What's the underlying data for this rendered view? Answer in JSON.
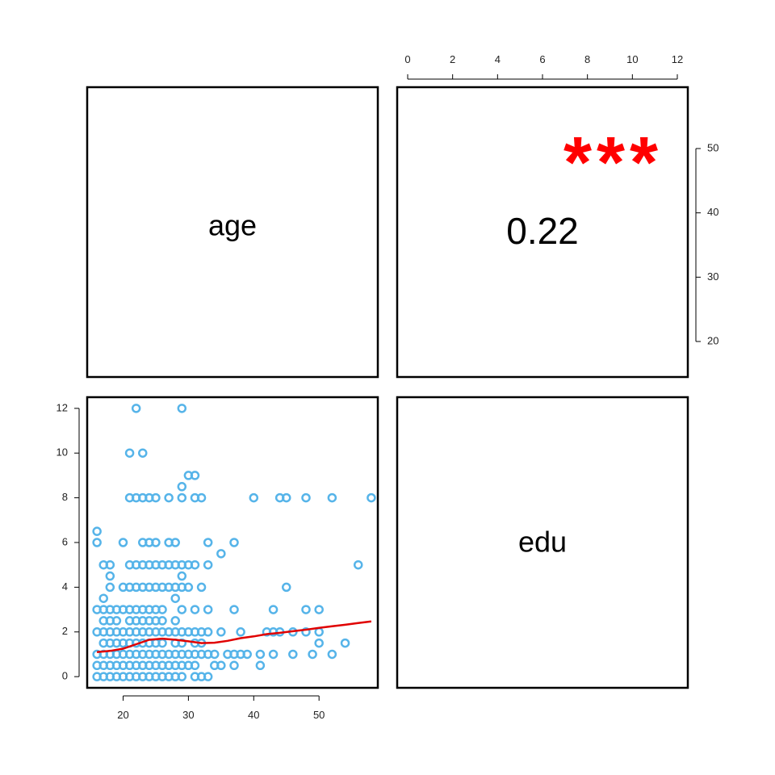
{
  "variables": [
    "age",
    "edu"
  ],
  "correlation": {
    "value": "0.22",
    "stars": "***"
  },
  "colors": {
    "points": "#56B4E9",
    "smooth": "#E00000",
    "stars": "#FF0000",
    "frame": "#000000"
  },
  "chart_data": {
    "type": "scatter",
    "title": "",
    "panels": [
      {
        "position": "upper-left",
        "kind": "diagonal-label",
        "label": "age"
      },
      {
        "position": "upper-right",
        "kind": "correlation",
        "value": "0.22",
        "stars": "***"
      },
      {
        "position": "lower-right",
        "kind": "diagonal-label",
        "label": "edu"
      },
      {
        "position": "lower-left",
        "kind": "scatter",
        "x_variable": "age",
        "y_variable": "edu"
      }
    ],
    "axes": {
      "age": {
        "range": [
          14.5,
          59
        ],
        "ticks": [
          20,
          30,
          40,
          50
        ],
        "secondary_ticks": [
          20,
          30,
          40,
          50
        ]
      },
      "edu": {
        "range": [
          -0.5,
          12.5
        ],
        "ticks": [
          0,
          2,
          4,
          6,
          8,
          10,
          12
        ]
      }
    },
    "grid": false,
    "legend": "none",
    "scatter_points": [
      [
        16,
        0
      ],
      [
        17,
        0
      ],
      [
        18,
        0
      ],
      [
        19,
        0
      ],
      [
        20,
        0
      ],
      [
        21,
        0
      ],
      [
        22,
        0
      ],
      [
        23,
        0
      ],
      [
        24,
        0
      ],
      [
        25,
        0
      ],
      [
        26,
        0
      ],
      [
        27,
        0
      ],
      [
        28,
        0
      ],
      [
        29,
        0
      ],
      [
        31,
        0
      ],
      [
        32,
        0
      ],
      [
        33,
        0
      ],
      [
        16,
        0.5
      ],
      [
        17,
        0.5
      ],
      [
        18,
        0.5
      ],
      [
        19,
        0.5
      ],
      [
        20,
        0.5
      ],
      [
        21,
        0.5
      ],
      [
        22,
        0.5
      ],
      [
        23,
        0.5
      ],
      [
        24,
        0.5
      ],
      [
        25,
        0.5
      ],
      [
        26,
        0.5
      ],
      [
        27,
        0.5
      ],
      [
        28,
        0.5
      ],
      [
        29,
        0.5
      ],
      [
        30,
        0.5
      ],
      [
        31,
        0.5
      ],
      [
        34,
        0.5
      ],
      [
        35,
        0.5
      ],
      [
        37,
        0.5
      ],
      [
        41,
        0.5
      ],
      [
        16,
        1
      ],
      [
        17,
        1
      ],
      [
        18,
        1
      ],
      [
        19,
        1
      ],
      [
        20,
        1
      ],
      [
        21,
        1
      ],
      [
        22,
        1
      ],
      [
        23,
        1
      ],
      [
        24,
        1
      ],
      [
        25,
        1
      ],
      [
        26,
        1
      ],
      [
        27,
        1
      ],
      [
        28,
        1
      ],
      [
        29,
        1
      ],
      [
        30,
        1
      ],
      [
        31,
        1
      ],
      [
        32,
        1
      ],
      [
        33,
        1
      ],
      [
        34,
        1
      ],
      [
        36,
        1
      ],
      [
        37,
        1
      ],
      [
        38,
        1
      ],
      [
        39,
        1
      ],
      [
        41,
        1
      ],
      [
        43,
        1
      ],
      [
        46,
        1
      ],
      [
        49,
        1
      ],
      [
        52,
        1
      ],
      [
        17,
        1.5
      ],
      [
        18,
        1.5
      ],
      [
        19,
        1.5
      ],
      [
        20,
        1.5
      ],
      [
        21,
        1.5
      ],
      [
        22,
        1.5
      ],
      [
        23,
        1.5
      ],
      [
        24,
        1.5
      ],
      [
        25,
        1.5
      ],
      [
        26,
        1.5
      ],
      [
        28,
        1.5
      ],
      [
        29,
        1.5
      ],
      [
        31,
        1.5
      ],
      [
        32,
        1.5
      ],
      [
        50,
        1.5
      ],
      [
        54,
        1.5
      ],
      [
        16,
        2
      ],
      [
        17,
        2
      ],
      [
        18,
        2
      ],
      [
        19,
        2
      ],
      [
        20,
        2
      ],
      [
        21,
        2
      ],
      [
        22,
        2
      ],
      [
        23,
        2
      ],
      [
        24,
        2
      ],
      [
        25,
        2
      ],
      [
        26,
        2
      ],
      [
        27,
        2
      ],
      [
        28,
        2
      ],
      [
        29,
        2
      ],
      [
        30,
        2
      ],
      [
        31,
        2
      ],
      [
        32,
        2
      ],
      [
        33,
        2
      ],
      [
        35,
        2
      ],
      [
        38,
        2
      ],
      [
        42,
        2
      ],
      [
        43,
        2
      ],
      [
        44,
        2
      ],
      [
        46,
        2
      ],
      [
        48,
        2
      ],
      [
        50,
        2
      ],
      [
        17,
        2.5
      ],
      [
        18,
        2.5
      ],
      [
        19,
        2.5
      ],
      [
        21,
        2.5
      ],
      [
        22,
        2.5
      ],
      [
        23,
        2.5
      ],
      [
        24,
        2.5
      ],
      [
        25,
        2.5
      ],
      [
        26,
        2.5
      ],
      [
        28,
        2.5
      ],
      [
        16,
        3
      ],
      [
        17,
        3
      ],
      [
        18,
        3
      ],
      [
        19,
        3
      ],
      [
        20,
        3
      ],
      [
        21,
        3
      ],
      [
        22,
        3
      ],
      [
        23,
        3
      ],
      [
        24,
        3
      ],
      [
        25,
        3
      ],
      [
        26,
        3
      ],
      [
        29,
        3
      ],
      [
        31,
        3
      ],
      [
        33,
        3
      ],
      [
        37,
        3
      ],
      [
        43,
        3
      ],
      [
        48,
        3
      ],
      [
        50,
        3
      ],
      [
        17,
        3.5
      ],
      [
        28,
        3.5
      ],
      [
        18,
        4
      ],
      [
        20,
        4
      ],
      [
        21,
        4
      ],
      [
        22,
        4
      ],
      [
        23,
        4
      ],
      [
        24,
        4
      ],
      [
        25,
        4
      ],
      [
        26,
        4
      ],
      [
        27,
        4
      ],
      [
        28,
        4
      ],
      [
        29,
        4
      ],
      [
        30,
        4
      ],
      [
        32,
        4
      ],
      [
        45,
        4
      ],
      [
        18,
        4.5
      ],
      [
        29,
        4.5
      ],
      [
        17,
        5
      ],
      [
        18,
        5
      ],
      [
        21,
        5
      ],
      [
        22,
        5
      ],
      [
        23,
        5
      ],
      [
        24,
        5
      ],
      [
        25,
        5
      ],
      [
        26,
        5
      ],
      [
        27,
        5
      ],
      [
        28,
        5
      ],
      [
        29,
        5
      ],
      [
        30,
        5
      ],
      [
        31,
        5
      ],
      [
        33,
        5
      ],
      [
        56,
        5
      ],
      [
        35,
        5.5
      ],
      [
        16,
        6
      ],
      [
        20,
        6
      ],
      [
        23,
        6
      ],
      [
        24,
        6
      ],
      [
        25,
        6
      ],
      [
        27,
        6
      ],
      [
        28,
        6
      ],
      [
        33,
        6
      ],
      [
        37,
        6
      ],
      [
        16,
        6.5
      ],
      [
        21,
        8
      ],
      [
        22,
        8
      ],
      [
        23,
        8
      ],
      [
        24,
        8
      ],
      [
        25,
        8
      ],
      [
        27,
        8
      ],
      [
        29,
        8
      ],
      [
        31,
        8
      ],
      [
        32,
        8
      ],
      [
        40,
        8
      ],
      [
        44,
        8
      ],
      [
        45,
        8
      ],
      [
        48,
        8
      ],
      [
        52,
        8
      ],
      [
        58,
        8
      ],
      [
        29,
        8.5
      ],
      [
        30,
        9
      ],
      [
        31,
        9
      ],
      [
        21,
        10
      ],
      [
        23,
        10
      ],
      [
        22,
        12
      ],
      [
        29,
        12
      ]
    ],
    "smooth_line": [
      [
        16,
        1.1
      ],
      [
        18,
        1.15
      ],
      [
        20,
        1.25
      ],
      [
        22,
        1.45
      ],
      [
        24,
        1.65
      ],
      [
        26,
        1.7
      ],
      [
        28,
        1.65
      ],
      [
        30,
        1.58
      ],
      [
        32,
        1.5
      ],
      [
        34,
        1.52
      ],
      [
        36,
        1.6
      ],
      [
        38,
        1.72
      ],
      [
        40,
        1.8
      ],
      [
        42,
        1.9
      ],
      [
        44,
        1.96
      ],
      [
        46,
        2.03
      ],
      [
        48,
        2.1
      ],
      [
        50,
        2.18
      ],
      [
        52,
        2.25
      ],
      [
        54,
        2.32
      ],
      [
        56,
        2.4
      ],
      [
        58,
        2.47
      ]
    ],
    "upper_axes": {
      "top_ticks": [
        0,
        2,
        4,
        6,
        8,
        10,
        12
      ],
      "right_ticks": [
        20,
        30,
        40,
        50
      ]
    }
  }
}
